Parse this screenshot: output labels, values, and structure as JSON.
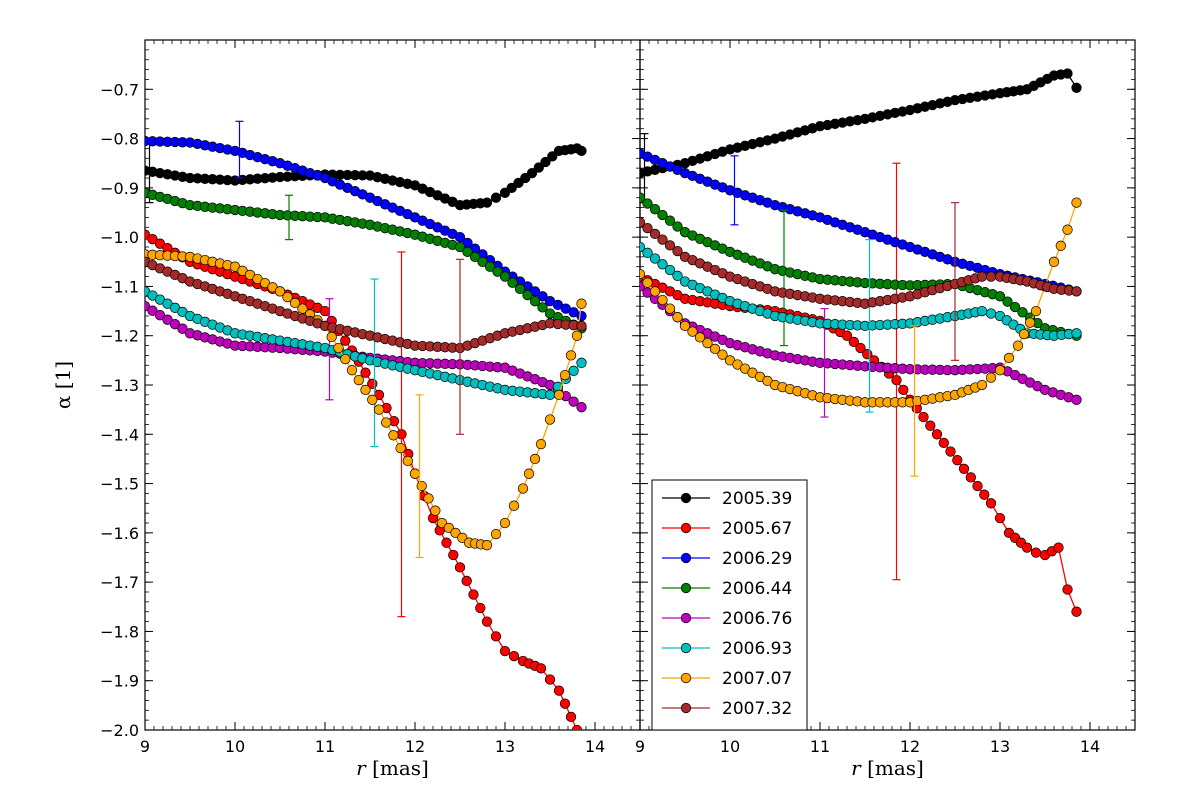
{
  "chart_data": [
    {
      "panel": "left",
      "type": "line",
      "xlabel_var": "r",
      "xlabel_unit": "[mas]",
      "ylabel": "α [1]",
      "xlim": [
        9,
        14.5
      ],
      "ylim": [
        -2.0,
        -0.6
      ],
      "xticks": [
        9,
        10,
        11,
        12,
        13,
        14
      ],
      "yticks": [
        -2.0,
        -1.9,
        -1.8,
        -1.7,
        -1.6,
        -1.5,
        -1.4,
        -1.3,
        -1.2,
        -1.1,
        -1.0,
        -0.9,
        -0.8,
        -0.7
      ],
      "ytick_labels": [
        "−2.0",
        "−1.9",
        "−1.8",
        "−1.7",
        "−1.6",
        "−1.5",
        "−1.4",
        "−1.3",
        "−1.2",
        "−1.1",
        "−1.0",
        "−0.9",
        "−0.8",
        "−0.7"
      ],
      "series": [
        {
          "name": "2005.39",
          "color": "#000000",
          "x": [
            9.0,
            9.5,
            10.0,
            10.5,
            11.0,
            11.5,
            12.0,
            12.5,
            12.8,
            13.0,
            13.3,
            13.6,
            13.8,
            13.85
          ],
          "y": [
            -0.865,
            -0.88,
            -0.885,
            -0.878,
            -0.873,
            -0.875,
            -0.895,
            -0.935,
            -0.93,
            -0.91,
            -0.87,
            -0.825,
            -0.82,
            -0.825
          ],
          "err": {
            "x": 9.05,
            "y": -0.87,
            "lo": -0.93,
            "hi": -0.8
          }
        },
        {
          "name": "2005.67",
          "color": "#ff0000",
          "x": [
            9.0,
            9.5,
            10.0,
            10.5,
            11.0,
            11.3,
            11.6,
            11.85,
            12.0,
            12.2,
            12.5,
            12.8,
            13.0,
            13.2,
            13.4,
            13.6,
            13.8
          ],
          "y": [
            -0.995,
            -1.05,
            -1.08,
            -1.11,
            -1.15,
            -1.23,
            -1.32,
            -1.4,
            -1.48,
            -1.57,
            -1.67,
            -1.78,
            -1.84,
            -1.86,
            -1.875,
            -1.92,
            -2.0
          ],
          "err": {
            "x": 11.85,
            "y": -1.4,
            "lo": -1.77,
            "hi": -1.03
          }
        },
        {
          "name": "2006.29",
          "color": "#0000ff",
          "x": [
            9.0,
            9.5,
            10.0,
            10.5,
            11.0,
            11.5,
            12.0,
            12.5,
            13.0,
            13.5,
            13.85
          ],
          "y": [
            -0.805,
            -0.808,
            -0.825,
            -0.85,
            -0.88,
            -0.92,
            -0.96,
            -1.0,
            -1.07,
            -1.13,
            -1.16
          ],
          "err": {
            "x": 10.05,
            "y": -0.825,
            "lo": -0.88,
            "hi": -0.765
          }
        },
        {
          "name": "2006.44",
          "color": "#008000",
          "x": [
            9.0,
            9.5,
            10.0,
            10.5,
            11.0,
            11.5,
            12.0,
            12.5,
            13.0,
            13.5,
            13.85
          ],
          "y": [
            -0.91,
            -0.935,
            -0.945,
            -0.955,
            -0.96,
            -0.975,
            -0.995,
            -1.02,
            -1.08,
            -1.155,
            -1.185
          ],
          "err": {
            "x": 10.6,
            "y": -0.96,
            "lo": -1.005,
            "hi": -0.915
          }
        },
        {
          "name": "2006.76",
          "color": "#bf00bf",
          "x": [
            9.0,
            9.5,
            10.0,
            10.5,
            11.0,
            11.5,
            12.0,
            12.5,
            13.0,
            13.5,
            13.85
          ],
          "y": [
            -1.14,
            -1.195,
            -1.22,
            -1.225,
            -1.232,
            -1.245,
            -1.255,
            -1.258,
            -1.265,
            -1.3,
            -1.345
          ],
          "err": {
            "x": 11.05,
            "y": -1.23,
            "lo": -1.33,
            "hi": -1.125
          }
        },
        {
          "name": "2006.93",
          "color": "#00bfbf",
          "x": [
            9.0,
            9.5,
            10.0,
            10.5,
            11.0,
            11.5,
            12.0,
            12.5,
            13.0,
            13.5,
            13.85
          ],
          "y": [
            -1.11,
            -1.16,
            -1.195,
            -1.21,
            -1.225,
            -1.25,
            -1.27,
            -1.29,
            -1.31,
            -1.32,
            -1.255
          ],
          "err": {
            "x": 11.55,
            "y": -1.255,
            "lo": -1.425,
            "hi": -1.085
          }
        },
        {
          "name": "2007.07",
          "color": "#ffa500",
          "x": [
            9.0,
            9.5,
            10.0,
            10.5,
            11.0,
            11.3,
            11.6,
            12.0,
            12.3,
            12.6,
            12.8,
            13.0,
            13.2,
            13.4,
            13.6,
            13.8,
            13.85
          ],
          "y": [
            -1.035,
            -1.04,
            -1.06,
            -1.11,
            -1.18,
            -1.27,
            -1.35,
            -1.48,
            -1.58,
            -1.62,
            -1.625,
            -1.58,
            -1.51,
            -1.42,
            -1.32,
            -1.2,
            -1.135
          ],
          "err": {
            "x": 12.05,
            "y": -1.485,
            "lo": -1.65,
            "hi": -1.32
          }
        },
        {
          "name": "2007.32",
          "color": "#a52a2a",
          "x": [
            9.0,
            9.5,
            10.0,
            10.5,
            11.0,
            11.5,
            12.0,
            12.5,
            13.0,
            13.5,
            13.85
          ],
          "y": [
            -1.05,
            -1.09,
            -1.12,
            -1.15,
            -1.18,
            -1.2,
            -1.22,
            -1.225,
            -1.195,
            -1.175,
            -1.18
          ],
          "err": {
            "x": 12.5,
            "y": -1.22,
            "lo": -1.4,
            "hi": -1.045
          }
        }
      ]
    },
    {
      "panel": "right",
      "type": "line",
      "xlabel_var": "r",
      "xlabel_unit": "[mas]",
      "xlim": [
        9,
        14.5
      ],
      "ylim": [
        -2.0,
        -0.6
      ],
      "xticks": [
        9,
        10,
        11,
        12,
        13,
        14
      ],
      "legend_placement": "lower-left",
      "series": [
        {
          "name": "2005.39",
          "color": "#000000",
          "x": [
            9.0,
            9.5,
            10.0,
            10.5,
            11.0,
            11.5,
            12.0,
            12.5,
            13.0,
            13.3,
            13.6,
            13.75,
            13.85
          ],
          "y": [
            -0.87,
            -0.85,
            -0.822,
            -0.8,
            -0.775,
            -0.76,
            -0.742,
            -0.722,
            -0.708,
            -0.7,
            -0.672,
            -0.668,
            -0.697
          ],
          "err": {
            "x": 9.05,
            "y": -0.86,
            "lo": -0.93,
            "hi": -0.79
          }
        },
        {
          "name": "2005.67",
          "color": "#ff0000",
          "x": [
            9.0,
            9.5,
            10.0,
            10.5,
            11.0,
            11.3,
            11.6,
            11.85,
            12.0,
            12.3,
            12.6,
            12.9,
            13.1,
            13.3,
            13.4,
            13.5,
            13.65,
            13.75,
            13.85
          ],
          "y": [
            -1.08,
            -1.125,
            -1.14,
            -1.15,
            -1.17,
            -1.2,
            -1.25,
            -1.29,
            -1.33,
            -1.4,
            -1.47,
            -1.54,
            -1.6,
            -1.63,
            -1.64,
            -1.645,
            -1.63,
            -1.715,
            -1.76
          ],
          "err": {
            "x": 11.85,
            "y": -1.275,
            "lo": -1.695,
            "hi": -0.85
          }
        },
        {
          "name": "2006.29",
          "color": "#0000ff",
          "x": [
            9.0,
            9.5,
            10.0,
            10.5,
            11.0,
            11.5,
            12.0,
            12.5,
            13.0,
            13.5,
            13.85
          ],
          "y": [
            -0.83,
            -0.87,
            -0.905,
            -0.935,
            -0.96,
            -0.99,
            -1.02,
            -1.05,
            -1.075,
            -1.095,
            -1.11
          ],
          "err": {
            "x": 10.05,
            "y": -0.905,
            "lo": -0.975,
            "hi": -0.835
          }
        },
        {
          "name": "2006.44",
          "color": "#008000",
          "x": [
            9.0,
            9.5,
            10.0,
            10.5,
            11.0,
            11.5,
            12.0,
            12.5,
            13.0,
            13.5,
            13.85
          ],
          "y": [
            -0.92,
            -0.99,
            -1.03,
            -1.065,
            -1.085,
            -1.093,
            -1.098,
            -1.095,
            -1.12,
            -1.185,
            -1.2
          ],
          "err": {
            "x": 10.6,
            "y": -1.08,
            "lo": -1.22,
            "hi": -0.945
          }
        },
        {
          "name": "2006.76",
          "color": "#bf00bf",
          "x": [
            9.0,
            9.5,
            10.0,
            10.5,
            11.0,
            11.5,
            12.0,
            12.5,
            13.0,
            13.5,
            13.85
          ],
          "y": [
            -1.1,
            -1.175,
            -1.215,
            -1.24,
            -1.255,
            -1.262,
            -1.268,
            -1.27,
            -1.265,
            -1.31,
            -1.33
          ],
          "err": {
            "x": 11.05,
            "y": -1.255,
            "lo": -1.365,
            "hi": -1.145
          }
        },
        {
          "name": "2006.93",
          "color": "#00bfbf",
          "x": [
            9.0,
            9.5,
            10.0,
            10.5,
            11.0,
            11.5,
            12.0,
            12.5,
            12.8,
            13.0,
            13.3,
            13.6,
            13.85
          ],
          "y": [
            -1.02,
            -1.09,
            -1.13,
            -1.16,
            -1.175,
            -1.18,
            -1.175,
            -1.16,
            -1.15,
            -1.16,
            -1.195,
            -1.2,
            -1.195
          ],
          "err": {
            "x": 11.55,
            "y": -1.18,
            "lo": -1.355,
            "hi": -1.005
          }
        },
        {
          "name": "2007.07",
          "color": "#ffa500",
          "x": [
            9.0,
            9.5,
            10.0,
            10.5,
            11.0,
            11.5,
            12.0,
            12.5,
            12.8,
            13.0,
            13.2,
            13.4,
            13.6,
            13.75,
            13.85
          ],
          "y": [
            -1.075,
            -1.18,
            -1.25,
            -1.3,
            -1.325,
            -1.335,
            -1.335,
            -1.32,
            -1.3,
            -1.27,
            -1.22,
            -1.15,
            -1.05,
            -0.985,
            -0.93
          ],
          "err": {
            "x": 12.05,
            "y": -1.335,
            "lo": -1.485,
            "hi": -1.18
          }
        },
        {
          "name": "2007.32",
          "color": "#a52a2a",
          "x": [
            9.0,
            9.5,
            10.0,
            10.5,
            11.0,
            11.5,
            12.0,
            12.5,
            12.8,
            13.0,
            13.3,
            13.6,
            13.85
          ],
          "y": [
            -0.97,
            -1.04,
            -1.08,
            -1.11,
            -1.125,
            -1.135,
            -1.12,
            -1.095,
            -1.08,
            -1.08,
            -1.09,
            -1.105,
            -1.11
          ],
          "err": {
            "x": 12.5,
            "y": -1.09,
            "lo": -1.25,
            "hi": -0.93
          }
        }
      ]
    }
  ]
}
